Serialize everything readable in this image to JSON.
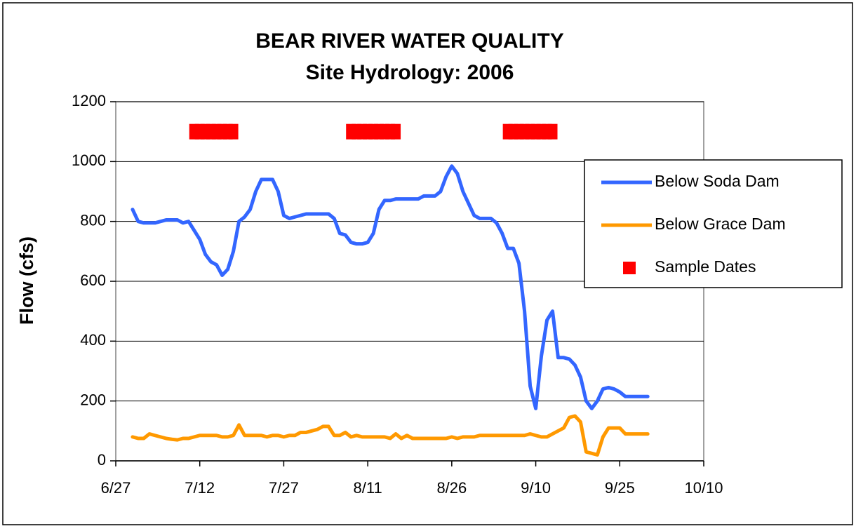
{
  "chart_data": {
    "type": "line",
    "title": "BEAR RIVER WATER QUALITY",
    "subtitle": "Site Hydrology: 2006",
    "y_label": "Flow (cfs)",
    "xlim": [
      "6/27",
      "10/10"
    ],
    "xticks": [
      "6/27",
      "7/12",
      "7/27",
      "8/11",
      "8/26",
      "9/10",
      "9/25",
      "10/10"
    ],
    "ylim": [
      0,
      1200
    ],
    "yticks": [
      0,
      200,
      400,
      600,
      800,
      1000,
      1200
    ],
    "grid": true,
    "legend": "right",
    "series": [
      {
        "name": "Below Soda Dam",
        "color": "#3366ff",
        "x": [
          "6/30",
          "7/1",
          "7/2",
          "7/3",
          "7/4",
          "7/5",
          "7/6",
          "7/7",
          "7/8",
          "7/9",
          "7/10",
          "7/11",
          "7/12",
          "7/13",
          "7/14",
          "7/15",
          "7/16",
          "7/17",
          "7/18",
          "7/19",
          "7/20",
          "7/21",
          "7/22",
          "7/23",
          "7/24",
          "7/25",
          "7/26",
          "7/27",
          "7/28",
          "7/29",
          "7/30",
          "7/31",
          "8/1",
          "8/2",
          "8/3",
          "8/4",
          "8/5",
          "8/6",
          "8/7",
          "8/8",
          "8/9",
          "8/10",
          "8/11",
          "8/12",
          "8/13",
          "8/14",
          "8/15",
          "8/16",
          "8/17",
          "8/18",
          "8/19",
          "8/20",
          "8/21",
          "8/22",
          "8/23",
          "8/24",
          "8/25",
          "8/26",
          "8/27",
          "8/28",
          "8/29",
          "8/30",
          "8/31",
          "9/1",
          "9/2",
          "9/3",
          "9/4",
          "9/5",
          "9/6",
          "9/7",
          "9/8",
          "9/9",
          "9/10",
          "9/11",
          "9/12",
          "9/13",
          "9/14",
          "9/15",
          "9/16",
          "9/17",
          "9/18",
          "9/19",
          "9/20",
          "9/21",
          "9/22",
          "9/23",
          "9/24",
          "9/25",
          "9/26",
          "9/27",
          "9/28",
          "9/29",
          "9/30"
        ],
        "values": [
          840,
          800,
          795,
          795,
          795,
          800,
          805,
          805,
          805,
          795,
          800,
          770,
          740,
          690,
          665,
          655,
          620,
          640,
          700,
          800,
          815,
          840,
          900,
          940,
          940,
          940,
          900,
          820,
          810,
          815,
          820,
          825,
          825,
          825,
          825,
          825,
          810,
          760,
          755,
          730,
          725,
          725,
          730,
          760,
          840,
          870,
          870,
          875,
          875,
          875,
          875,
          875,
          885,
          885,
          885,
          900,
          950,
          985,
          960,
          900,
          860,
          820,
          810,
          810,
          810,
          795,
          760,
          710,
          710,
          660,
          500,
          250,
          175,
          350,
          470,
          500,
          345,
          345,
          340,
          320,
          280,
          200,
          175,
          200,
          240,
          245,
          240,
          230,
          215,
          215,
          215,
          215,
          215
        ]
      },
      {
        "name": "Below Grace Dam",
        "color": "#ff9900",
        "x": [
          "6/30",
          "7/1",
          "7/2",
          "7/3",
          "7/4",
          "7/5",
          "7/6",
          "7/7",
          "7/8",
          "7/9",
          "7/10",
          "7/11",
          "7/12",
          "7/13",
          "7/14",
          "7/15",
          "7/16",
          "7/17",
          "7/18",
          "7/19",
          "7/20",
          "7/21",
          "7/22",
          "7/23",
          "7/24",
          "7/25",
          "7/26",
          "7/27",
          "7/28",
          "7/29",
          "7/30",
          "7/31",
          "8/1",
          "8/2",
          "8/3",
          "8/4",
          "8/5",
          "8/6",
          "8/7",
          "8/8",
          "8/9",
          "8/10",
          "8/11",
          "8/12",
          "8/13",
          "8/14",
          "8/15",
          "8/16",
          "8/17",
          "8/18",
          "8/19",
          "8/20",
          "8/21",
          "8/22",
          "8/23",
          "8/24",
          "8/25",
          "8/26",
          "8/27",
          "8/28",
          "8/29",
          "8/30",
          "8/31",
          "9/1",
          "9/2",
          "9/3",
          "9/4",
          "9/5",
          "9/6",
          "9/7",
          "9/8",
          "9/9",
          "9/10",
          "9/11",
          "9/12",
          "9/13",
          "9/14",
          "9/15",
          "9/16",
          "9/17",
          "9/18",
          "9/19",
          "9/20",
          "9/21",
          "9/22",
          "9/23",
          "9/24",
          "9/25",
          "9/26",
          "9/27",
          "9/28",
          "9/29",
          "9/30"
        ],
        "values": [
          80,
          75,
          75,
          90,
          85,
          80,
          75,
          72,
          70,
          75,
          75,
          80,
          85,
          85,
          85,
          85,
          80,
          80,
          85,
          120,
          85,
          85,
          85,
          85,
          80,
          85,
          85,
          80,
          85,
          85,
          95,
          95,
          100,
          105,
          115,
          115,
          85,
          85,
          95,
          80,
          85,
          80,
          80,
          80,
          80,
          80,
          75,
          90,
          75,
          85,
          75,
          75,
          75,
          75,
          75,
          75,
          75,
          80,
          75,
          80,
          80,
          80,
          85,
          85,
          85,
          85,
          85,
          85,
          85,
          85,
          85,
          90,
          85,
          80,
          80,
          90,
          100,
          110,
          145,
          150,
          130,
          30,
          25,
          20,
          80,
          110,
          110,
          110,
          90,
          90,
          90,
          90,
          90
        ]
      },
      {
        "name": "Sample Dates",
        "color": "#ff0000",
        "marker": "square",
        "x": [
          "7/11",
          "7/12",
          "7/13",
          "7/14",
          "7/15",
          "7/16",
          "7/17",
          "7/18",
          "8/8",
          "8/9",
          "8/10",
          "8/11",
          "8/12",
          "8/13",
          "8/14",
          "8/15",
          "8/16",
          "9/5",
          "9/6",
          "9/7",
          "9/8",
          "9/9",
          "9/10",
          "9/11",
          "9/12",
          "9/13"
        ],
        "values": [
          1100,
          1100,
          1100,
          1100,
          1100,
          1100,
          1100,
          1100,
          1100,
          1100,
          1100,
          1100,
          1100,
          1100,
          1100,
          1100,
          1100,
          1100,
          1100,
          1100,
          1100,
          1100,
          1100,
          1100,
          1100,
          1100
        ]
      }
    ]
  }
}
